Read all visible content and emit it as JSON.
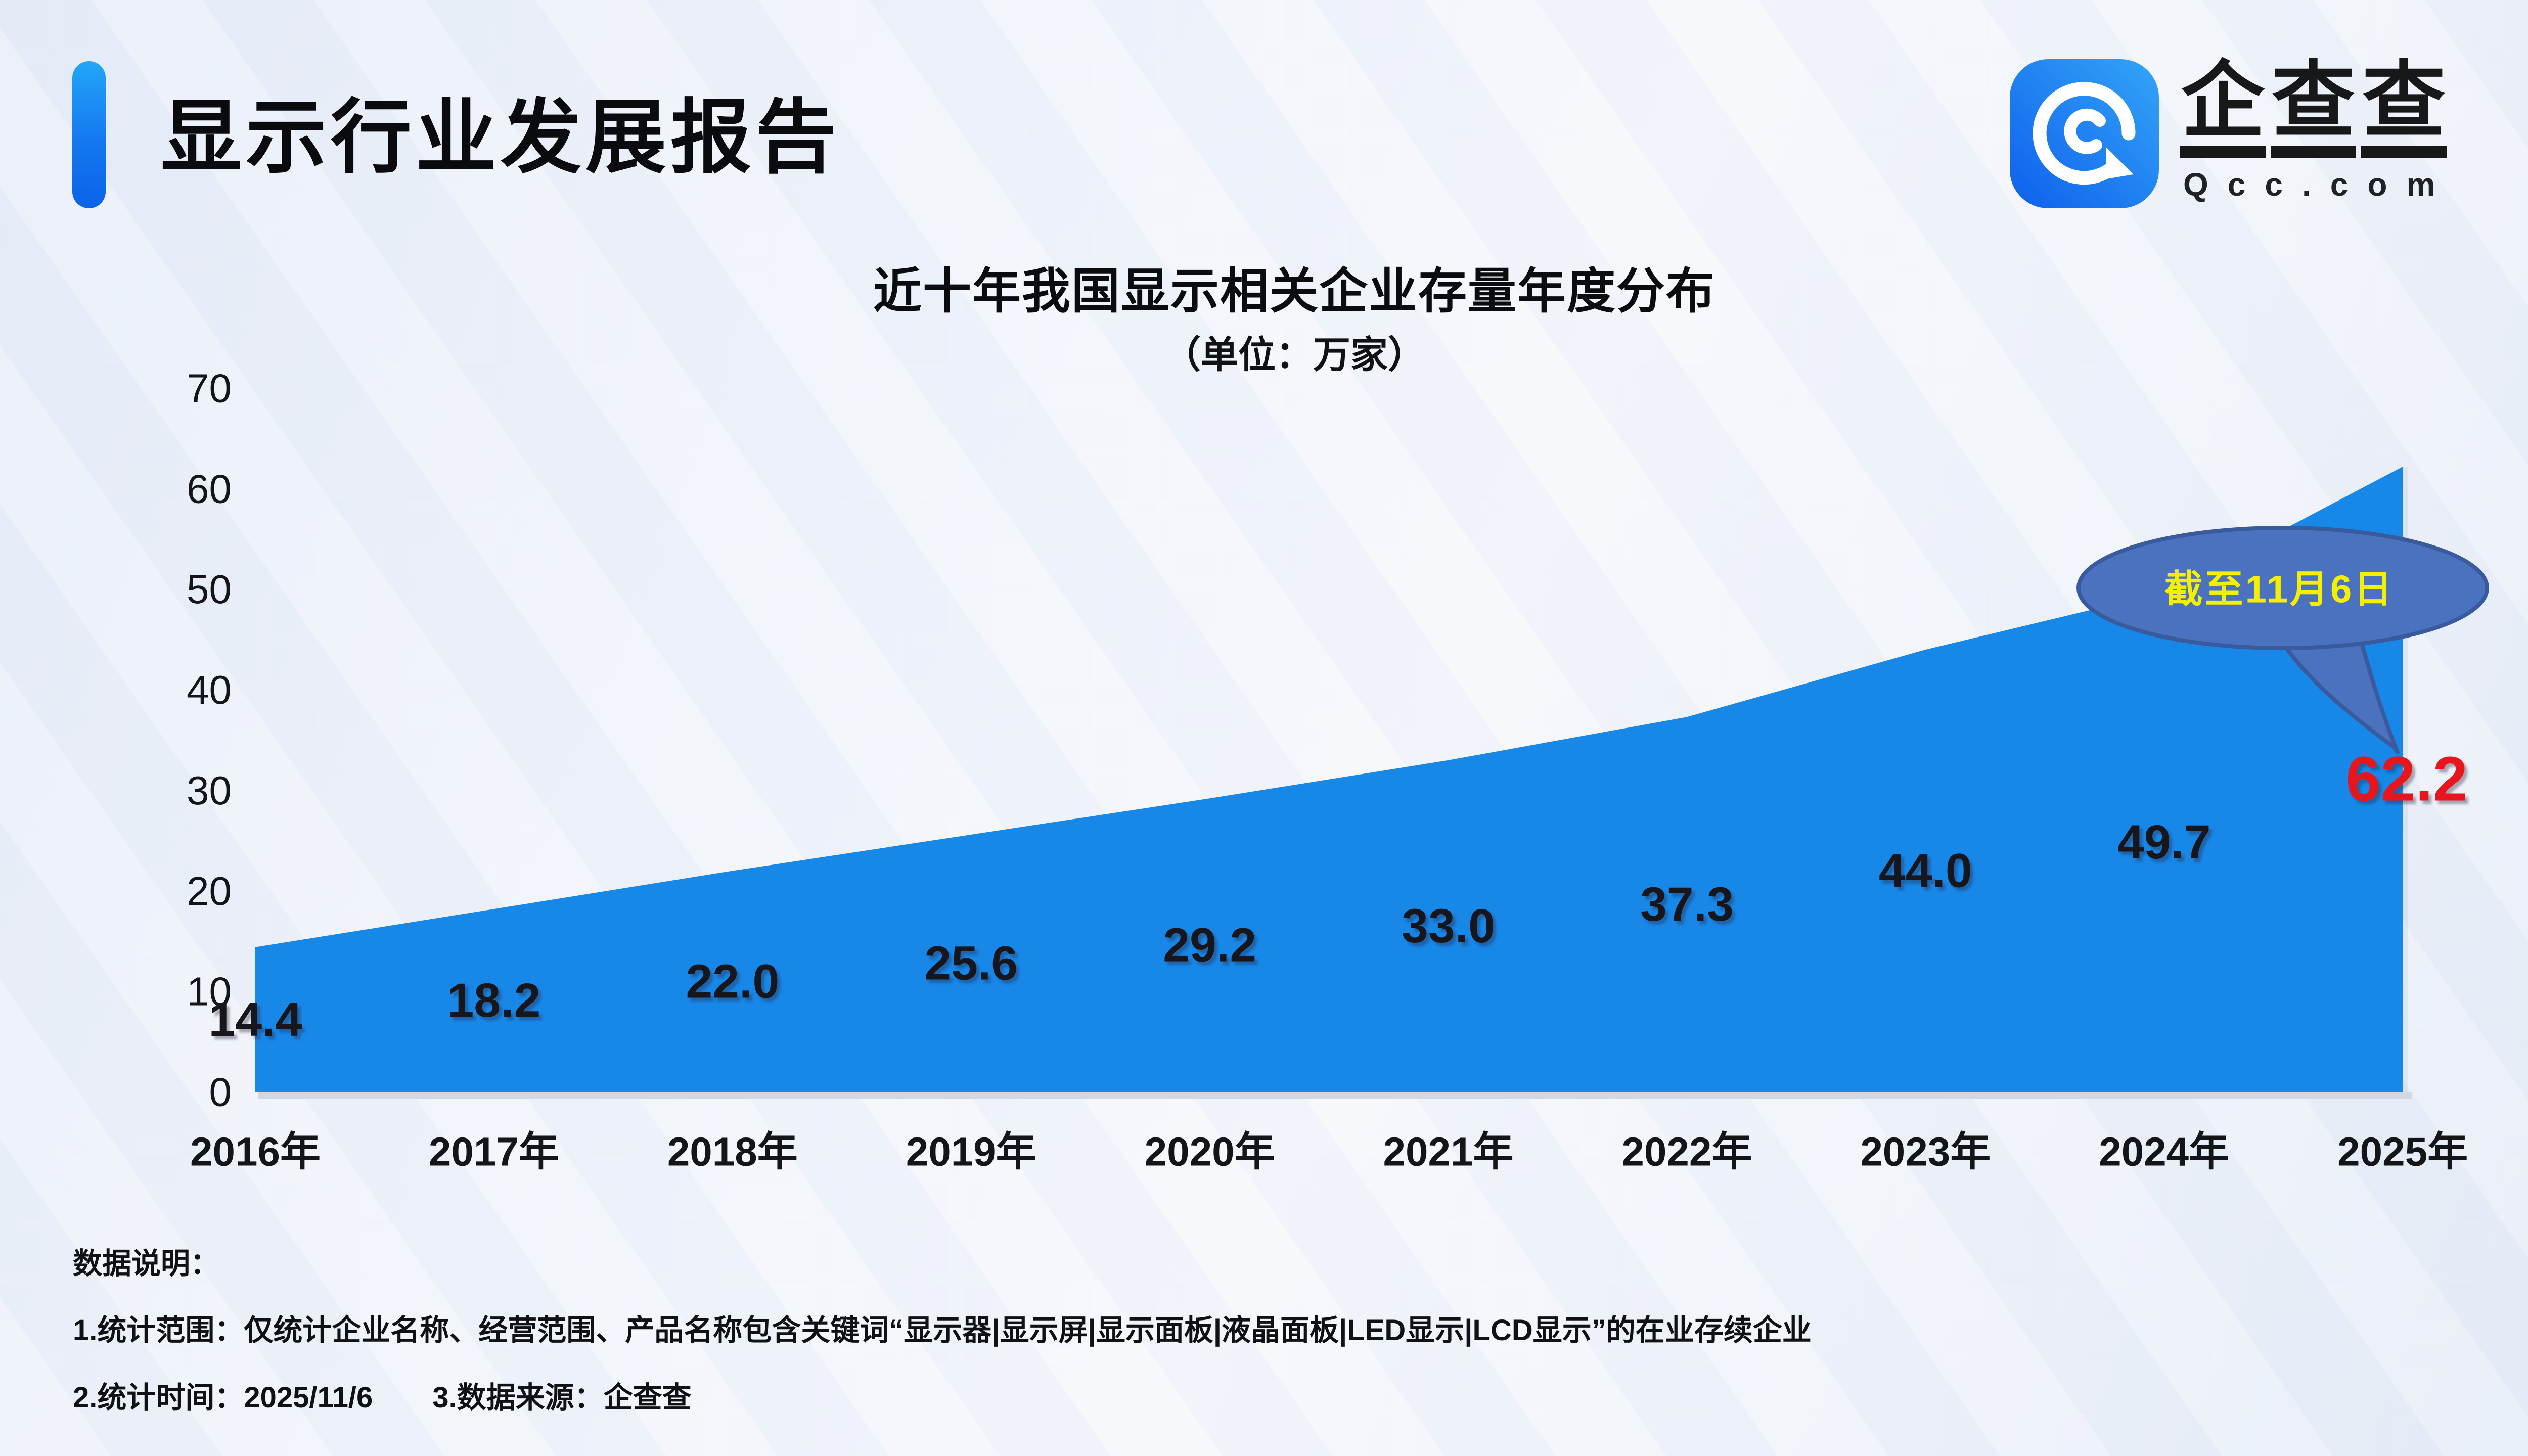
{
  "header": {
    "title": "显示行业发展报告"
  },
  "logo": {
    "chars": [
      "企",
      "查",
      "查"
    ],
    "domain": "Qcc.com",
    "icon": "qcc-spiral-icon",
    "icon_gradient": [
      "#33a5f7",
      "#0f60ed"
    ]
  },
  "chart_data": {
    "type": "area",
    "title": "近十年我国显示相关企业存量年度分布",
    "subtitle": "（单位：万家）",
    "categories": [
      "2016年",
      "2017年",
      "2018年",
      "2019年",
      "2020年",
      "2021年",
      "2022年",
      "2023年",
      "2024年",
      "2025年"
    ],
    "values": [
      14.4,
      18.2,
      22.0,
      25.6,
      29.2,
      33.0,
      37.3,
      44.0,
      49.7,
      62.2
    ],
    "ylabel": "",
    "xlabel": "",
    "ylim": [
      0,
      70
    ],
    "yticks": [
      0,
      10,
      20,
      30,
      40,
      50,
      60,
      70
    ],
    "grid": false,
    "legend": "none",
    "area_color": "#1787e8",
    "label_color": "#15161a",
    "last_label_color": "#e8121a",
    "callout": {
      "text": "截至11月6日",
      "fill": "#4a72be",
      "stroke": "#3a5a9e",
      "text_color": "#f5f000"
    }
  },
  "notes": {
    "title": "数据说明：",
    "line1": "1.统计范围：仅统计企业名称、经营范围、产品名称包含关键词“显示器|显示屏|显示面板|液晶面板|LED显示|LCD显示”的在业存续企业",
    "line2": "2.统计时间：2025/11/6",
    "line3": "3.数据来源：企查查"
  }
}
